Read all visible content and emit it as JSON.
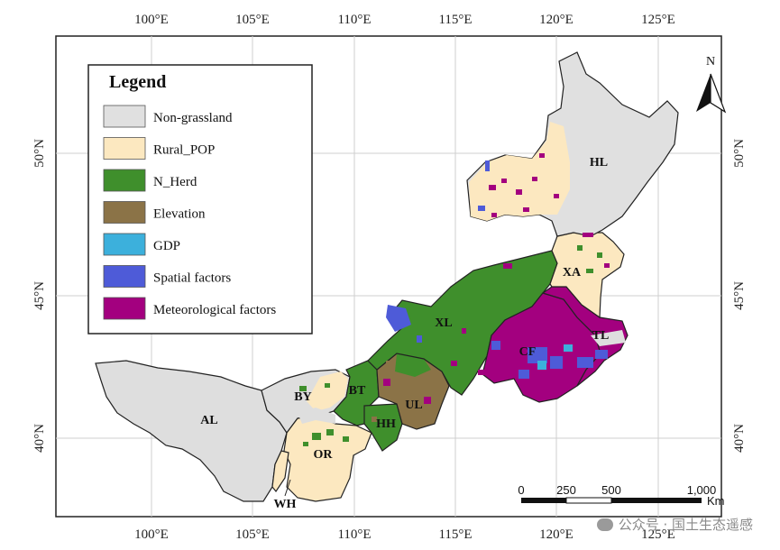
{
  "legend": {
    "title": "Legend",
    "items": [
      {
        "label": "Non-grassland",
        "color": "#e0e0e0"
      },
      {
        "label": "Rural_POP",
        "color": "#fce8c0"
      },
      {
        "label": "N_Herd",
        "color": "#3f8f2c"
      },
      {
        "label": "Elevation",
        "color": "#8b7347"
      },
      {
        "label": "GDP",
        "color": "#3cb0dc"
      },
      {
        "label": "Spatial factors",
        "color": "#4e5bd8"
      },
      {
        "label": "Meteorological factors",
        "color": "#a3007f"
      }
    ]
  },
  "graticule": {
    "lon_labels": [
      "100°E",
      "105°E",
      "110°E",
      "115°E",
      "120°E",
      "125°E"
    ],
    "lat_labels": [
      "50°N",
      "45°N",
      "40°N"
    ]
  },
  "regions": {
    "HL": "HL",
    "XA": "XA",
    "XL": "XL",
    "TL": "TL",
    "CF": "CF",
    "BY": "BY",
    "BT": "BT",
    "UL": "UL",
    "HH": "HH",
    "AL": "AL",
    "OR": "OR",
    "WH": "WH"
  },
  "north_arrow": {
    "label": "N"
  },
  "scale_bar": {
    "ticks": [
      "0",
      "250",
      "500",
      "1,000"
    ],
    "unit": "Km"
  },
  "watermark": "公众号 · 国土生态遥感"
}
